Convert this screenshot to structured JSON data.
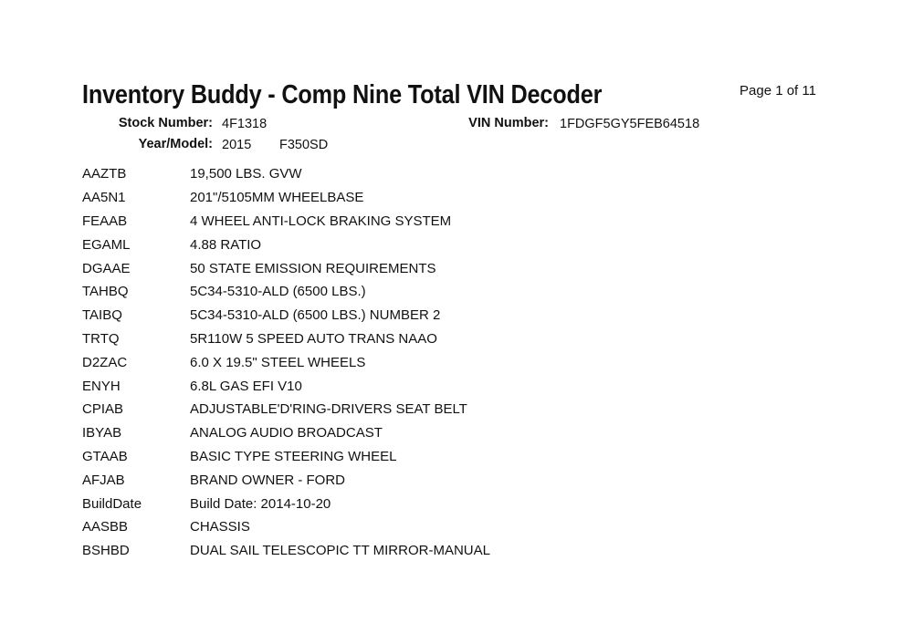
{
  "header": {
    "title": "Inventory Buddy - Comp Nine Total VIN Decoder",
    "page": "Page 1 of 11",
    "stock_label": "Stock Number:",
    "stock_value": "4F1318",
    "vin_label": "VIN Number:",
    "vin_value": "1FDGF5GY5FEB64518",
    "year_model_label": "Year/Model:",
    "year": "2015",
    "model": "F350SD"
  },
  "rows": [
    {
      "code": "AAZTB",
      "desc": "19,500 LBS. GVW"
    },
    {
      "code": "AA5N1",
      "desc": "201\"/5105MM WHEELBASE"
    },
    {
      "code": "FEAAB",
      "desc": "4 WHEEL ANTI-LOCK BRAKING SYSTEM"
    },
    {
      "code": "EGAML",
      "desc": "4.88 RATIO"
    },
    {
      "code": "DGAAE",
      "desc": "50 STATE EMISSION REQUIREMENTS"
    },
    {
      "code": "TAHBQ",
      "desc": "5C34-5310-ALD (6500 LBS.)"
    },
    {
      "code": "TAIBQ",
      "desc": "5C34-5310-ALD (6500 LBS.) NUMBER 2"
    },
    {
      "code": "TRTQ",
      "desc": "5R110W 5 SPEED AUTO TRANS NAAO"
    },
    {
      "code": "D2ZAC",
      "desc": "6.0 X 19.5\" STEEL WHEELS"
    },
    {
      "code": "ENYH",
      "desc": "6.8L GAS EFI V10"
    },
    {
      "code": "CPIAB",
      "desc": "ADJUSTABLE'D'RING-DRIVERS SEAT BELT"
    },
    {
      "code": "IBYAB",
      "desc": "ANALOG AUDIO BROADCAST"
    },
    {
      "code": "GTAAB",
      "desc": "BASIC TYPE STEERING WHEEL"
    },
    {
      "code": "AFJAB",
      "desc": "BRAND OWNER - FORD"
    },
    {
      "code": "BuildDate",
      "desc": "Build Date: 2014-10-20"
    },
    {
      "code": "AASBB",
      "desc": "CHASSIS"
    },
    {
      "code": "BSHBD",
      "desc": "DUAL SAIL TELESCOPIC TT MIRROR-MANUAL"
    }
  ]
}
